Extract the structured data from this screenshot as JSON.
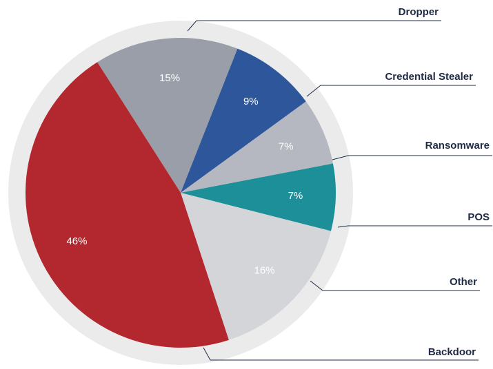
{
  "chart_data": {
    "type": "pie",
    "categories": [
      "Dropper",
      "Credential Stealer",
      "Ransomware",
      "POS",
      "Other",
      "Backdoor"
    ],
    "values": [
      15,
      9,
      7,
      7,
      16,
      46
    ],
    "value_labels": [
      "15%",
      "9%",
      "7%",
      "7%",
      "16%",
      "46%"
    ],
    "colors": [
      "#9a9ea8",
      "#2d569b",
      "#b5b8c0",
      "#1c8f98",
      "#d3d5d9",
      "#b3282e"
    ]
  }
}
